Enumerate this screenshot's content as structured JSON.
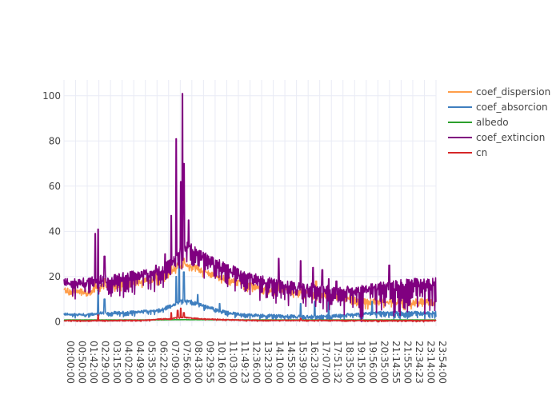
{
  "chart_data": {
    "type": "line",
    "title": "",
    "xlabel": "",
    "ylabel": "",
    "ylim": [
      -2,
      107
    ],
    "grid": true,
    "legend_position": "top-right",
    "x_tick_labels": [
      "00:00:00",
      "00:50:00",
      "01:42:00",
      "02:29:00",
      "03:15:00",
      "04:02:00",
      "04:49:00",
      "05:35:00",
      "06:22:00",
      "07:09:00",
      "07:56:00",
      "08:43:00",
      "09:29:55",
      "10:16:00",
      "11:03:00",
      "11:49:23",
      "12:36:00",
      "13:23:00",
      "14:10:00",
      "14:55:00",
      "15:39:00",
      "16:23:00",
      "17:07:00",
      "17:51:32",
      "18:35:00",
      "19:15:00",
      "19:56:00",
      "20:35:00",
      "21:14:55",
      "21:55:00",
      "22:34:23",
      "23:14:00",
      "23:54:00"
    ],
    "y_ticks": [
      0,
      20,
      40,
      60,
      80,
      100
    ],
    "series": [
      {
        "name": "coef_dispersion",
        "color": "#ff9e4a",
        "base": [
          [
            0,
            14
          ],
          [
            0.8,
            13.5
          ],
          [
            1.5,
            13
          ],
          [
            2.5,
            16
          ],
          [
            3.2,
            16
          ],
          [
            4.0,
            17
          ],
          [
            5.0,
            18
          ],
          [
            6.0,
            19
          ],
          [
            6.8,
            22
          ],
          [
            7.3,
            25
          ],
          [
            7.7,
            25
          ],
          [
            8.5,
            24
          ],
          [
            9.5,
            21
          ],
          [
            10.5,
            19
          ],
          [
            11.5,
            17
          ],
          [
            12.5,
            15
          ],
          [
            13.5,
            14
          ],
          [
            14.5,
            13.5
          ],
          [
            16.0,
            12.5
          ],
          [
            17.5,
            11.5
          ],
          [
            18.5,
            11
          ],
          [
            19.0,
            9
          ],
          [
            20.0,
            9
          ],
          [
            21.0,
            9
          ],
          [
            22.0,
            9
          ],
          [
            23.0,
            9
          ],
          [
            23.9,
            9
          ]
        ],
        "spikes": [
          [
            0.7,
            16
          ],
          [
            2.0,
            20
          ],
          [
            2.6,
            19
          ],
          [
            5.9,
            22
          ],
          [
            6.9,
            28
          ],
          [
            7.4,
            30
          ],
          [
            7.7,
            28
          ],
          [
            8.0,
            25
          ],
          [
            12.0,
            17
          ],
          [
            13.8,
            18
          ],
          [
            15.2,
            20
          ],
          [
            16.2,
            18
          ],
          [
            17.0,
            15
          ],
          [
            17.9,
            14
          ],
          [
            20.0,
            12
          ],
          [
            21.0,
            13
          ],
          [
            22.0,
            14
          ]
        ],
        "noise": 2.5,
        "dips": 2.0,
        "jitter_every": 2
      },
      {
        "name": "coef_absorcion",
        "color": "#3f7fbf",
        "base": [
          [
            0,
            3.5
          ],
          [
            1.5,
            3
          ],
          [
            2.5,
            4
          ],
          [
            4.0,
            4
          ],
          [
            5.0,
            4.5
          ],
          [
            6.0,
            5
          ],
          [
            7.0,
            7.5
          ],
          [
            7.6,
            9.5
          ],
          [
            8.2,
            9
          ],
          [
            9.0,
            7
          ],
          [
            10.0,
            5
          ],
          [
            11.0,
            3.5
          ],
          [
            12.0,
            3
          ],
          [
            14.0,
            2.5
          ],
          [
            16.0,
            2.3
          ],
          [
            17.0,
            2.5
          ],
          [
            18.0,
            3
          ],
          [
            19.0,
            3.5
          ],
          [
            20.0,
            4
          ],
          [
            22.0,
            4
          ],
          [
            23.9,
            4
          ]
        ],
        "spikes": [
          [
            2.2,
            14
          ],
          [
            2.6,
            10
          ],
          [
            7.2,
            20
          ],
          [
            7.4,
            26
          ],
          [
            7.7,
            22
          ],
          [
            8.6,
            12
          ],
          [
            10.0,
            8
          ],
          [
            15.2,
            8
          ],
          [
            16.1,
            9
          ],
          [
            17.0,
            9
          ],
          [
            19.8,
            9
          ]
        ],
        "noise": 1.2,
        "dips": 1.5,
        "jitter_every": 2
      },
      {
        "name": "albedo",
        "color": "#2ca02c",
        "base": [
          [
            0,
            0.8
          ],
          [
            6.0,
            0.8
          ],
          [
            7.5,
            0.9
          ],
          [
            12.0,
            0.8
          ],
          [
            23.9,
            0.8
          ]
        ],
        "spikes": [],
        "noise": 0.1,
        "dips": 0.0,
        "jitter_every": 4
      },
      {
        "name": "coef_extincion",
        "color": "#800080",
        "base": [
          [
            0,
            18
          ],
          [
            0.8,
            17.5
          ],
          [
            1.5,
            17.5
          ],
          [
            2.5,
            19
          ],
          [
            3.2,
            19
          ],
          [
            4.0,
            20
          ],
          [
            5.0,
            21
          ],
          [
            6.0,
            22
          ],
          [
            6.8,
            26
          ],
          [
            7.3,
            30
          ],
          [
            7.9,
            34
          ],
          [
            8.5,
            31
          ],
          [
            9.5,
            27
          ],
          [
            10.5,
            24
          ],
          [
            11.5,
            21
          ],
          [
            12.5,
            19
          ],
          [
            13.5,
            17
          ],
          [
            14.5,
            16
          ],
          [
            16.0,
            15
          ],
          [
            17.5,
            13.5
          ],
          [
            18.5,
            14
          ],
          [
            19.0,
            14
          ],
          [
            20.0,
            15.5
          ],
          [
            21.0,
            16
          ],
          [
            22.0,
            17
          ],
          [
            23.0,
            17.5
          ],
          [
            23.9,
            17.5
          ]
        ],
        "spikes": [
          [
            2.0,
            39
          ],
          [
            2.2,
            41
          ],
          [
            2.6,
            29
          ],
          [
            5.9,
            25
          ],
          [
            6.5,
            30
          ],
          [
            6.9,
            47
          ],
          [
            7.2,
            81
          ],
          [
            7.5,
            62
          ],
          [
            7.6,
            101
          ],
          [
            7.7,
            70
          ],
          [
            8.0,
            45
          ],
          [
            13.8,
            28
          ],
          [
            15.2,
            27
          ],
          [
            16.0,
            24
          ],
          [
            16.6,
            23
          ],
          [
            17.0,
            19
          ],
          [
            17.5,
            18
          ],
          [
            20.9,
            25
          ],
          [
            22.5,
            18
          ]
        ],
        "noise": 4,
        "dips": 8,
        "jitter_every": 1
      },
      {
        "name": "cn",
        "color": "#d62728",
        "base": [
          [
            0,
            0.5
          ],
          [
            2.0,
            0.5
          ],
          [
            5.0,
            0.6
          ],
          [
            7.0,
            1.5
          ],
          [
            7.6,
            2
          ],
          [
            9.0,
            1.2
          ],
          [
            12.0,
            0.6
          ],
          [
            23.9,
            0.5
          ]
        ],
        "spikes": [
          [
            2.2,
            3
          ],
          [
            6.9,
            4
          ],
          [
            7.3,
            5
          ],
          [
            7.5,
            6
          ],
          [
            7.7,
            4
          ],
          [
            15.2,
            1.5
          ]
        ],
        "noise": 0.4,
        "dips": 0.3,
        "jitter_every": 2
      }
    ]
  }
}
